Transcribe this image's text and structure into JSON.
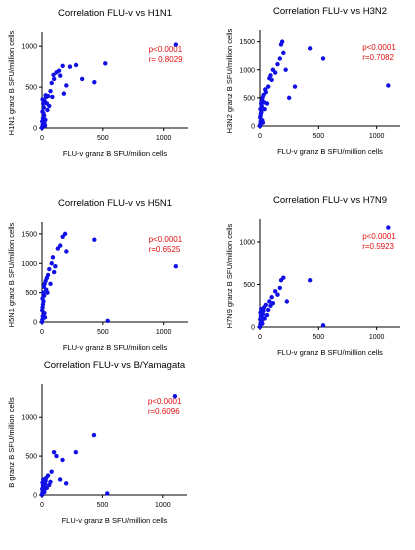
{
  "colors": {
    "points": "#1010e6",
    "stats": "#e01010",
    "axis": "#000000",
    "text": "#000000"
  },
  "chart_data": [
    {
      "type": "scatter",
      "title": "Correlation FLU-v vs H1N1",
      "xlabel": "FLU-v granz B SFU/milion cells",
      "ylabel": "H1N1 granz B SFU/million cells",
      "xlim": [
        0,
        1200
      ],
      "ylim": [
        0,
        1100
      ],
      "xticks": [
        0,
        500,
        1000
      ],
      "yticks": [
        0,
        500,
        1000
      ],
      "annotation": [
        "p<0.0001",
        "r= 0.8029"
      ],
      "grid": false,
      "points": [
        [
          0,
          0
        ],
        [
          3,
          15
        ],
        [
          6,
          40
        ],
        [
          2,
          80
        ],
        [
          8,
          120
        ],
        [
          4,
          200
        ],
        [
          10,
          300
        ],
        [
          5,
          350
        ],
        [
          15,
          250
        ],
        [
          12,
          180
        ],
        [
          20,
          60
        ],
        [
          25,
          30
        ],
        [
          18,
          150
        ],
        [
          22,
          330
        ],
        [
          30,
          400
        ],
        [
          35,
          380
        ],
        [
          40,
          300
        ],
        [
          28,
          100
        ],
        [
          45,
          220
        ],
        [
          50,
          390
        ],
        [
          60,
          270
        ],
        [
          70,
          450
        ],
        [
          80,
          550
        ],
        [
          85,
          380
        ],
        [
          95,
          650
        ],
        [
          100,
          600
        ],
        [
          120,
          680
        ],
        [
          140,
          700
        ],
        [
          150,
          640
        ],
        [
          170,
          760
        ],
        [
          180,
          420
        ],
        [
          200,
          520
        ],
        [
          230,
          750
        ],
        [
          280,
          770
        ],
        [
          330,
          600
        ],
        [
          430,
          560
        ],
        [
          520,
          790
        ],
        [
          1100,
          1020
        ]
      ]
    },
    {
      "type": "scatter",
      "title": "Correlation FLU-v vs H3N2",
      "xlabel": "FLU-v granz B SFU/million cells",
      "ylabel": "H3N2 granz B SFU/million cells",
      "xlim": [
        0,
        1200
      ],
      "ylim": [
        0,
        1600
      ],
      "xticks": [
        0,
        500,
        1000
      ],
      "yticks": [
        0,
        500,
        1000,
        1500
      ],
      "annotation": [
        "p<0.0001",
        "r=0.7082"
      ],
      "grid": false,
      "points": [
        [
          0,
          0
        ],
        [
          3,
          30
        ],
        [
          6,
          80
        ],
        [
          2,
          150
        ],
        [
          8,
          220
        ],
        [
          4,
          300
        ],
        [
          10,
          400
        ],
        [
          5,
          180
        ],
        [
          15,
          350
        ],
        [
          12,
          250
        ],
        [
          20,
          100
        ],
        [
          25,
          60
        ],
        [
          18,
          450
        ],
        [
          22,
          500
        ],
        [
          30,
          550
        ],
        [
          35,
          420
        ],
        [
          40,
          300
        ],
        [
          45,
          650
        ],
        [
          50,
          600
        ],
        [
          60,
          400
        ],
        [
          70,
          700
        ],
        [
          80,
          850
        ],
        [
          90,
          900
        ],
        [
          100,
          820
        ],
        [
          110,
          1000
        ],
        [
          130,
          950
        ],
        [
          150,
          1100
        ],
        [
          170,
          1200
        ],
        [
          180,
          1450
        ],
        [
          190,
          1500
        ],
        [
          200,
          1300
        ],
        [
          220,
          1000
        ],
        [
          250,
          500
        ],
        [
          300,
          700
        ],
        [
          430,
          1380
        ],
        [
          540,
          1200
        ],
        [
          1100,
          720
        ]
      ]
    },
    {
      "type": "scatter",
      "title": "Correlation FLU-v vs H5N1",
      "xlabel": "FLU-v granz B SFU/milion cells",
      "ylabel": "H5N1 granz B SFU/million cells",
      "xlim": [
        0,
        1200
      ],
      "ylim": [
        0,
        1600
      ],
      "xticks": [
        0,
        500,
        1000
      ],
      "yticks": [
        0,
        500,
        1000,
        1500
      ],
      "annotation": [
        "p<0.0001",
        "r=0.6525"
      ],
      "grid": false,
      "points": [
        [
          0,
          0
        ],
        [
          3,
          40
        ],
        [
          6,
          100
        ],
        [
          2,
          200
        ],
        [
          8,
          300
        ],
        [
          4,
          400
        ],
        [
          10,
          500
        ],
        [
          5,
          250
        ],
        [
          15,
          600
        ],
        [
          12,
          350
        ],
        [
          20,
          150
        ],
        [
          25,
          80
        ],
        [
          18,
          450
        ],
        [
          22,
          650
        ],
        [
          30,
          700
        ],
        [
          35,
          550
        ],
        [
          40,
          750
        ],
        [
          45,
          500
        ],
        [
          50,
          800
        ],
        [
          60,
          900
        ],
        [
          70,
          650
        ],
        [
          80,
          1000
        ],
        [
          90,
          1100
        ],
        [
          100,
          850
        ],
        [
          110,
          950
        ],
        [
          130,
          1250
        ],
        [
          150,
          1300
        ],
        [
          170,
          1450
        ],
        [
          190,
          1500
        ],
        [
          200,
          1200
        ],
        [
          430,
          1400
        ],
        [
          540,
          20
        ],
        [
          1100,
          950
        ]
      ]
    },
    {
      "type": "scatter",
      "title": "Correlation FLU-v vs H7N9",
      "xlabel": "FLU-v granz B SFU/million cells",
      "ylabel": "H7N9 granz B SFU/million cells",
      "xlim": [
        0,
        1200
      ],
      "ylim": [
        0,
        1200
      ],
      "xticks": [
        0,
        500,
        1000
      ],
      "yticks": [
        0,
        500,
        1000
      ],
      "annotation": [
        "p<0.0001",
        "r=0.5923"
      ],
      "grid": false,
      "points": [
        [
          0,
          0
        ],
        [
          3,
          20
        ],
        [
          6,
          50
        ],
        [
          2,
          90
        ],
        [
          8,
          130
        ],
        [
          4,
          170
        ],
        [
          10,
          210
        ],
        [
          5,
          30
        ],
        [
          15,
          70
        ],
        [
          12,
          110
        ],
        [
          20,
          40
        ],
        [
          25,
          150
        ],
        [
          30,
          190
        ],
        [
          35,
          230
        ],
        [
          40,
          100
        ],
        [
          50,
          260
        ],
        [
          60,
          140
        ],
        [
          70,
          200
        ],
        [
          80,
          300
        ],
        [
          90,
          250
        ],
        [
          100,
          350
        ],
        [
          110,
          280
        ],
        [
          130,
          420
        ],
        [
          150,
          380
        ],
        [
          170,
          460
        ],
        [
          180,
          550
        ],
        [
          200,
          580
        ],
        [
          230,
          300
        ],
        [
          430,
          550
        ],
        [
          540,
          20
        ],
        [
          1100,
          1170
        ]
      ]
    },
    {
      "type": "scatter",
      "title": "Correlation FLU-v vs B/Yamagata",
      "xlabel": "FLU-v granz B SFU/million cells",
      "ylabel": "B granz B SFU/million cells",
      "xlim": [
        0,
        1200
      ],
      "ylim": [
        0,
        1350
      ],
      "xticks": [
        0,
        500,
        1000
      ],
      "yticks": [
        0,
        500,
        1000
      ],
      "annotation": [
        "p<0.0001",
        "r=0.6096"
      ],
      "grid": false,
      "points": [
        [
          0,
          0
        ],
        [
          3,
          20
        ],
        [
          6,
          50
        ],
        [
          2,
          80
        ],
        [
          8,
          120
        ],
        [
          4,
          160
        ],
        [
          10,
          200
        ],
        [
          5,
          30
        ],
        [
          15,
          60
        ],
        [
          12,
          100
        ],
        [
          20,
          40
        ],
        [
          25,
          140
        ],
        [
          30,
          180
        ],
        [
          35,
          220
        ],
        [
          40,
          90
        ],
        [
          50,
          250
        ],
        [
          60,
          130
        ],
        [
          70,
          170
        ],
        [
          80,
          300
        ],
        [
          100,
          550
        ],
        [
          120,
          500
        ],
        [
          150,
          200
        ],
        [
          170,
          450
        ],
        [
          200,
          150
        ],
        [
          280,
          550
        ],
        [
          430,
          770
        ],
        [
          540,
          20
        ],
        [
          1100,
          1270
        ]
      ]
    }
  ]
}
